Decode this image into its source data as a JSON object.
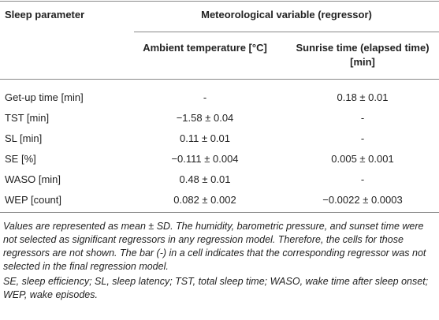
{
  "table": {
    "header": [
      "Sleep parameter",
      "Ambient temperature [°C]",
      "Sunrise time (elapsed time) [min]"
    ],
    "group_header": "Meteorological variable (regressor)",
    "rows": [
      [
        "Get-up time [min]",
        "-",
        "0.18 ± 0.01"
      ],
      [
        "TST [min]",
        "−1.58 ± 0.04",
        "-"
      ],
      [
        "SL [min]",
        "0.11 ± 0.01",
        "-"
      ],
      [
        "SE [%]",
        "−0.111 ± 0.004",
        "0.005 ± 0.001"
      ],
      [
        "WASO [min]",
        "0.48 ± 0.01",
        "-"
      ],
      [
        "WEP [count]",
        "0.082 ± 0.002",
        "−0.0022 ± 0.0003"
      ]
    ]
  },
  "footnotes": [
    "Values are represented as mean ± SD. The humidity, barometric pressure, and sunset time were not selected as significant regressors in any regression model. Therefore, the cells for those regressors are not shown. The bar (-) in a cell indicates that the corresponding regressor was not selected in the final regression model.",
    "SE, sleep efficiency; SL, sleep latency; TST, total sleep time; WASO, wake time after sleep onset; WEP, wake episodes."
  ]
}
